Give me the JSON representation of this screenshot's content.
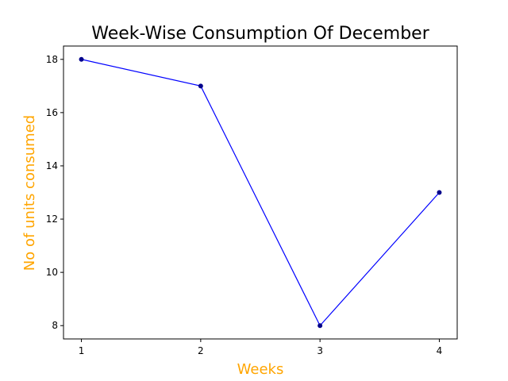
{
  "chart_data": {
    "type": "line",
    "title": "Week-Wise Consumption Of December",
    "xlabel": "Weeks",
    "ylabel": "No of units consumed",
    "x": [
      1,
      2,
      3,
      4
    ],
    "x_tick_labels": [
      "1",
      "2",
      "3",
      "4"
    ],
    "y_tick_labels": [
      "8",
      "10",
      "12",
      "14",
      "16",
      "18"
    ],
    "series": [
      {
        "values": [
          18,
          17,
          8,
          13
        ]
      }
    ],
    "xlim": [
      0.85,
      4.15
    ],
    "ylim": [
      7.5,
      18.5
    ],
    "grid": false,
    "legend": "none",
    "colors": {
      "line": "#0000ff",
      "marker": "#00008b",
      "axis_label": "#ffa500",
      "title": "#000000"
    }
  }
}
